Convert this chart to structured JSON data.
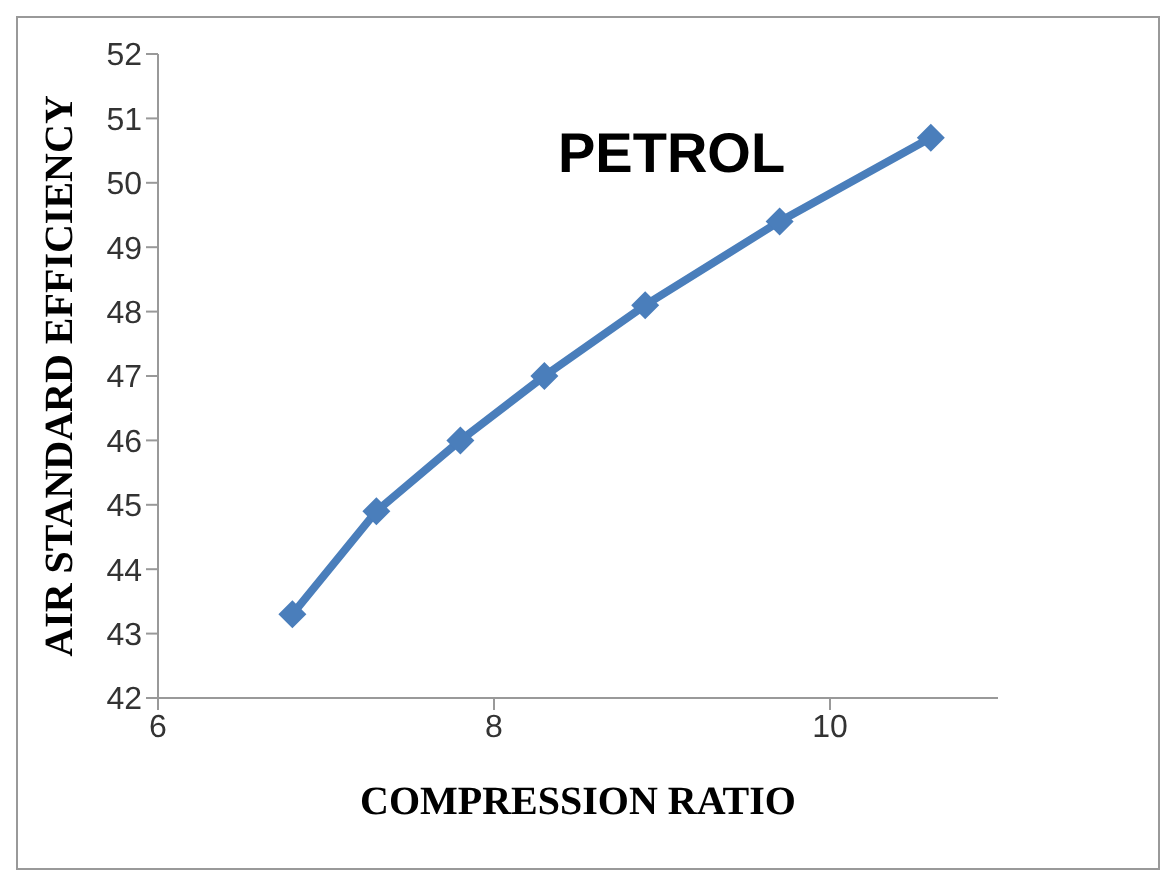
{
  "chart_data": {
    "type": "line",
    "xlabel": "COMPRESSION RATIO",
    "ylabel": "AIR STANDARD EFFICIENCY",
    "annotations": [
      "PETROL"
    ],
    "x": [
      6.8,
      7.3,
      7.8,
      8.3,
      8.9,
      9.7,
      10.6
    ],
    "series": [
      {
        "color": "#4a7ebb",
        "values": [
          43.3,
          44.9,
          46.0,
          47.0,
          48.1,
          49.4,
          50.7
        ]
      }
    ],
    "xlim": [
      6,
      11
    ],
    "xticks": [
      6,
      8,
      10
    ],
    "ylim": [
      42,
      52
    ],
    "yticks": [
      42,
      43,
      44,
      45,
      46,
      47,
      48,
      49,
      50,
      51,
      52
    ],
    "grid": false,
    "legend": false,
    "marker": "diamond",
    "line_style": "solid"
  }
}
